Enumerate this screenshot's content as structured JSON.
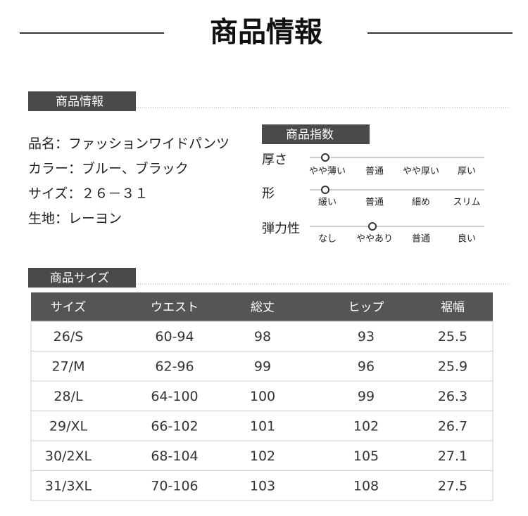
{
  "header": {
    "title": "商品情報"
  },
  "info": {
    "label": "商品情報",
    "items": [
      "品名：ファッションワイドパンツ",
      "カラー：ブルー、ブラック",
      "サイズ：２６－３１",
      "生地：レーヨン"
    ]
  },
  "index": {
    "label": "商品指数",
    "rows": [
      {
        "name": "厚さ",
        "options": [
          "やや薄い",
          "普通",
          "やや厚い",
          "厚い"
        ],
        "selected": 0
      },
      {
        "name": "形",
        "options": [
          "緩い",
          "普通",
          "細め",
          "スリム"
        ],
        "selected": 0
      },
      {
        "name": "弾力性",
        "options": [
          "なし",
          "ややあり",
          "普通",
          "良い"
        ],
        "selected": 1
      }
    ]
  },
  "size": {
    "label": "商品サイズ",
    "table": {
      "header": [
        "サイズ",
        "ウエスト",
        "総丈",
        "ヒップ",
        "裾幅"
      ],
      "rows": [
        [
          "26/S",
          "60-94",
          98,
          93,
          25.5
        ],
        [
          "27/M",
          "62-96",
          99,
          96,
          25.9
        ],
        [
          "28/L",
          "64-100",
          100,
          99,
          26.3
        ],
        [
          "29/XL",
          "66-102",
          101,
          102,
          26.7
        ],
        [
          "30/2XL",
          "68-104",
          102,
          105,
          27.1
        ],
        [
          "31/3XL",
          "70-106",
          103,
          108,
          27.5
        ]
      ]
    }
  }
}
